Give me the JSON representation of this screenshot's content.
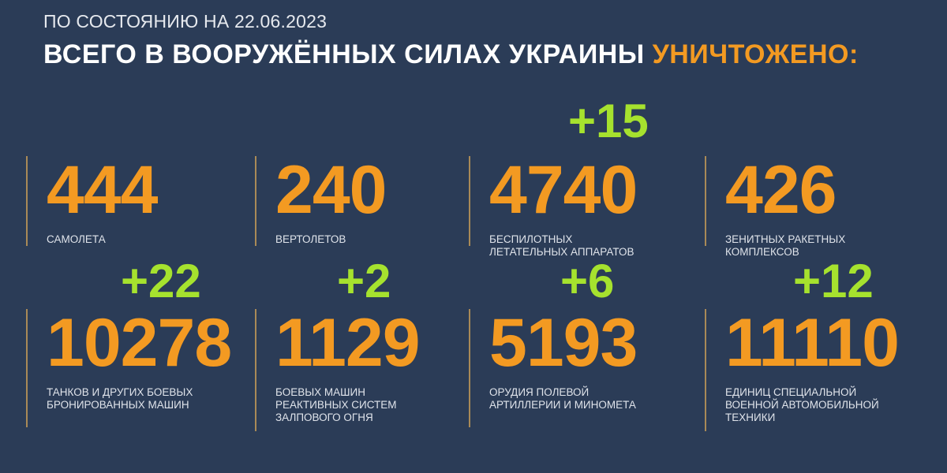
{
  "header": {
    "subtitle": "ПО СОСТОЯНИЮ НА 22.06.2023",
    "title_main": "ВСЕГО В ВООРУЖЁННЫХ СИЛАХ УКРАИНЫ",
    "title_accent": "УНИЧТОЖЕНО:"
  },
  "colors": {
    "background": "#2b3c57",
    "number": "#f39a22",
    "delta": "#a6e22e",
    "text": "#ffffff"
  },
  "stats": [
    {
      "value": "444",
      "label_lines": [
        "САМОЛЕТА"
      ],
      "delta": ""
    },
    {
      "value": "240",
      "label_lines": [
        "ВЕРТОЛЕТОВ"
      ],
      "delta": ""
    },
    {
      "value": "4740",
      "label_lines": [
        "БЕСПИЛОТНЫХ",
        "ЛЕТАТЕЛЬНЫХ АППАРАТОВ"
      ],
      "delta": "+15"
    },
    {
      "value": "426",
      "label_lines": [
        "ЗЕНИТНЫХ РАКЕТНЫХ",
        "КОМПЛЕКСОВ"
      ],
      "delta": ""
    },
    {
      "value": "10278",
      "label_lines": [
        "ТАНКОВ И ДРУГИХ БОЕВЫХ",
        "БРОНИРОВАННЫХ МАШИН"
      ],
      "delta": "+22"
    },
    {
      "value": "1129",
      "label_lines": [
        "БОЕВЫХ МАШИН",
        "РЕАКТИВНЫХ СИСТЕМ",
        "ЗАЛПОВОГО ОГНЯ"
      ],
      "delta": "+2"
    },
    {
      "value": "5193",
      "label_lines": [
        "ОРУДИЯ ПОЛЕВОЙ",
        "АРТИЛЛЕРИИ И МИНОМЕТА"
      ],
      "delta": "+6"
    },
    {
      "value": "11110",
      "label_lines": [
        "ЕДИНИЦ СПЕЦИАЛЬНОЙ",
        "ВОЕННОЙ АВТОМОБИЛЬНОЙ",
        "ТЕХНИКИ"
      ],
      "delta": "+12"
    }
  ]
}
